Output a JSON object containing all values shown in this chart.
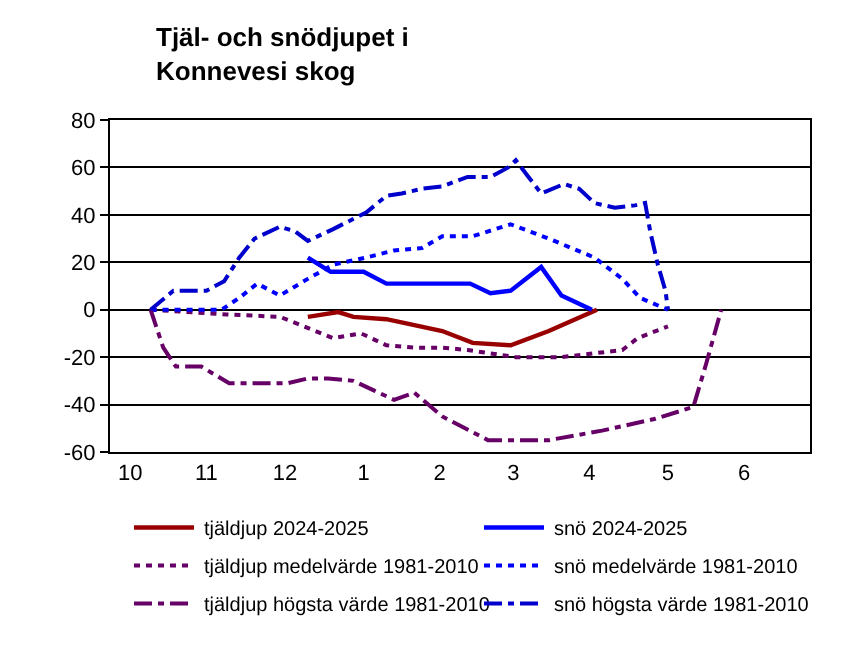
{
  "chart_data": {
    "type": "line",
    "title": "Tjäl- och snödjupet i Konnevesi skog",
    "xlim": [
      "2024-10-08",
      "2025-07-11"
    ],
    "xticks": [
      {
        "value": "2024-10-16",
        "label": "10"
      },
      {
        "value": "2024-11-15",
        "label": "11"
      },
      {
        "value": "2024-12-16",
        "label": "12"
      },
      {
        "value": "2025-01-16",
        "label": "1"
      },
      {
        "value": "2025-02-15",
        "label": "2"
      },
      {
        "value": "2025-03-16",
        "label": "3"
      },
      {
        "value": "2025-04-15",
        "label": "4"
      },
      {
        "value": "2025-05-16",
        "label": "5"
      },
      {
        "value": "2025-06-15",
        "label": "6"
      }
    ],
    "ylim": [
      -60,
      80
    ],
    "yticks": [
      -60,
      -40,
      -20,
      0,
      20,
      40,
      60,
      80
    ],
    "grid": "y",
    "legend": "bottom",
    "marker": "none",
    "series": [
      {
        "name": "tjäldjup 2024-2025",
        "color": "#990000",
        "line_style": "solid",
        "x": [
          "2024-12-25",
          "2025-01-06",
          "2025-01-12",
          "2025-01-25",
          "2025-02-16",
          "2025-02-28",
          "2025-03-15",
          "2025-03-30",
          "2025-04-18"
        ],
        "values": [
          -3,
          -1,
          -3,
          -4,
          -9,
          -14,
          -15,
          -9,
          0
        ]
      },
      {
        "name": "snö 2024-2025",
        "color": "#0000ff",
        "line_style": "solid",
        "x": [
          "2024-12-25",
          "2025-01-03",
          "2025-01-16",
          "2025-01-25",
          "2025-02-16",
          "2025-02-27",
          "2025-03-07",
          "2025-03-15",
          "2025-03-27",
          "2025-04-04",
          "2025-04-16"
        ],
        "values": [
          22,
          16,
          16,
          11,
          11,
          11,
          7,
          8,
          18,
          6,
          0
        ]
      },
      {
        "name": "tjäldjup medelvärde 1981-2010",
        "color": "#660066",
        "line_style": "dotted",
        "x": [
          "2024-10-24",
          "2024-11-23",
          "2024-12-14",
          "2024-12-28",
          "2025-01-04",
          "2025-01-15",
          "2025-01-25",
          "2025-02-05",
          "2025-02-16",
          "2025-02-26",
          "2025-03-17",
          "2025-04-04",
          "2025-04-28",
          "2025-05-04",
          "2025-05-16"
        ],
        "values": [
          0,
          -2,
          -3,
          -9,
          -12,
          -10,
          -15,
          -16,
          -16,
          -17,
          -20,
          -20,
          -17,
          -12,
          -7
        ]
      },
      {
        "name": "snö medelvärde 1981-2010",
        "color": "#0000ff",
        "line_style": "dotted",
        "x": [
          "2024-10-24",
          "2024-11-21",
          "2024-11-28",
          "2024-12-05",
          "2024-12-14",
          "2024-12-25",
          "2025-01-04",
          "2025-01-17",
          "2025-01-28",
          "2025-02-08",
          "2025-02-16",
          "2025-02-28",
          "2025-03-15",
          "2025-03-30",
          "2025-04-17",
          "2025-04-28",
          "2025-05-05",
          "2025-05-16"
        ],
        "values": [
          0,
          0,
          5,
          11,
          6,
          13,
          19,
          22,
          25,
          26,
          31,
          31,
          36,
          30,
          22,
          13,
          5,
          0
        ]
      },
      {
        "name": "tjäldjup högsta värde 1981-2010",
        "color": "#660066",
        "line_style": "dashdot",
        "x": [
          "2024-10-24",
          "2024-10-29",
          "2024-11-03",
          "2024-11-13",
          "2024-11-24",
          "2024-12-17",
          "2024-12-25",
          "2025-01-02",
          "2025-01-12",
          "2025-01-20",
          "2025-01-28",
          "2025-02-05",
          "2025-02-16",
          "2025-03-06",
          "2025-03-30",
          "2025-04-20",
          "2025-05-11",
          "2025-05-26",
          "2025-05-31",
          "2025-06-06"
        ],
        "values": [
          0,
          -16,
          -24,
          -24,
          -31,
          -31,
          -29,
          -29,
          -30,
          -34,
          -38,
          -35,
          -45,
          -55,
          -55,
          -51,
          -46,
          -41,
          -23,
          0
        ]
      },
      {
        "name": "snö högsta värde 1981-2010",
        "color": "#0000cc",
        "line_style": "dashdot",
        "x": [
          "2024-10-24",
          "2024-11-02",
          "2024-11-15",
          "2024-11-22",
          "2024-11-28",
          "2024-12-04",
          "2024-12-14",
          "2024-12-20",
          "2024-12-25",
          "2025-01-04",
          "2025-01-17",
          "2025-01-25",
          "2025-01-31",
          "2025-02-08",
          "2025-02-16",
          "2025-02-26",
          "2025-03-07",
          "2025-03-14",
          "2025-03-17",
          "2025-03-22",
          "2025-03-27",
          "2025-04-05",
          "2025-04-11",
          "2025-04-17",
          "2025-04-25",
          "2025-05-03",
          "2025-05-07",
          "2025-05-09",
          "2025-05-12",
          "2025-05-15",
          "2025-05-16"
        ],
        "values": [
          0,
          8,
          8,
          12,
          22,
          30,
          35,
          33,
          29,
          34,
          41,
          48,
          49,
          51,
          52,
          56,
          56,
          60,
          63,
          56,
          49,
          53,
          51,
          45,
          43,
          44,
          45,
          33,
          19,
          8,
          0
        ]
      }
    ]
  }
}
